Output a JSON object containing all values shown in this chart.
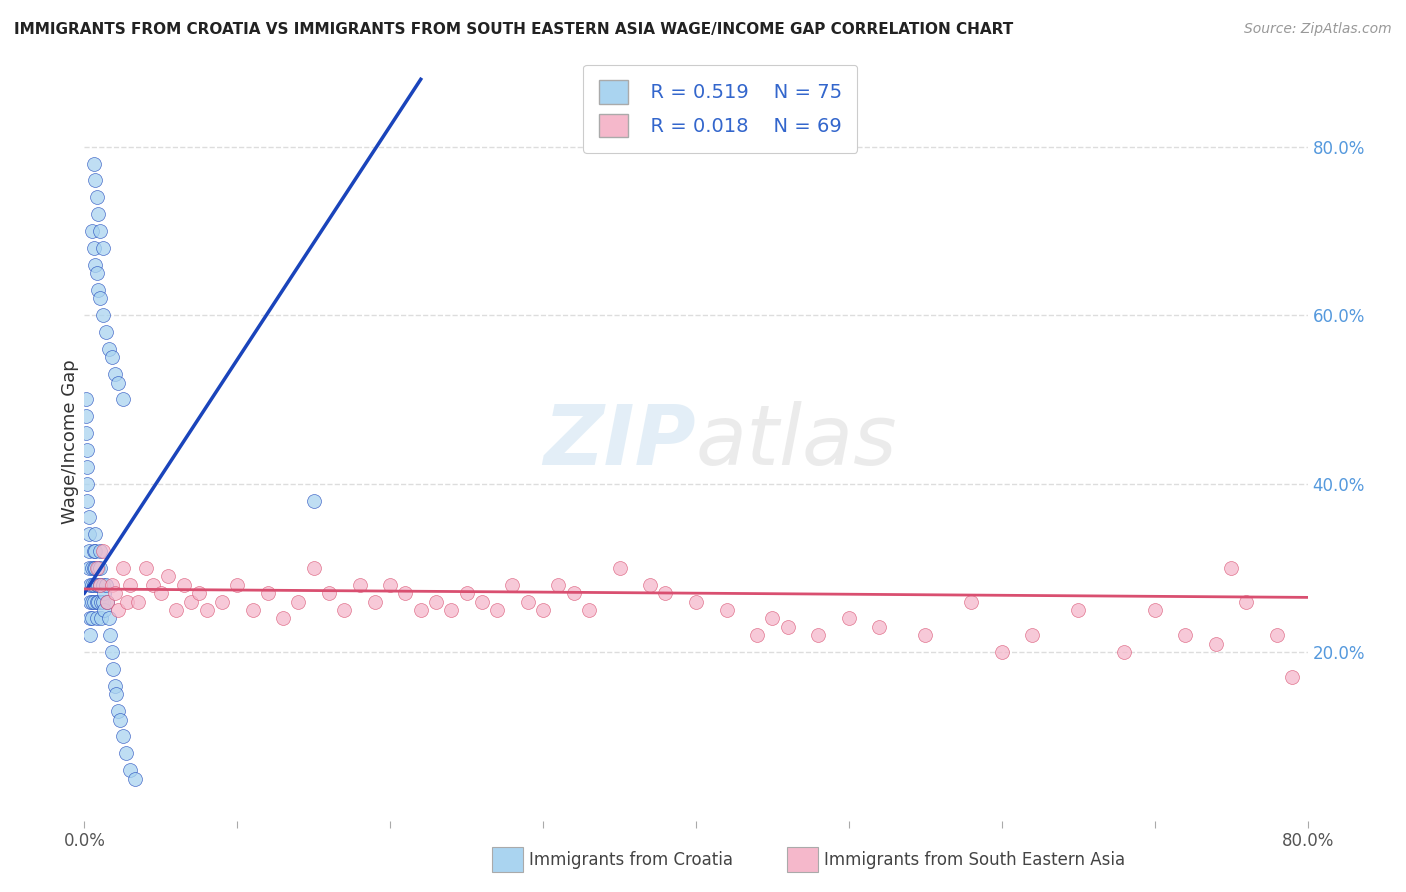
{
  "title": "IMMIGRANTS FROM CROATIA VS IMMIGRANTS FROM SOUTH EASTERN ASIA WAGE/INCOME GAP CORRELATION CHART",
  "source": "Source: ZipAtlas.com",
  "ylabel": "Wage/Income Gap",
  "legend_blue_R": "R = 0.519",
  "legend_blue_N": "N = 75",
  "legend_pink_R": "R = 0.018",
  "legend_pink_N": "N = 69",
  "legend_blue_label": "Immigrants from Croatia",
  "legend_pink_label": "Immigrants from South Eastern Asia",
  "blue_color": "#aad4f0",
  "pink_color": "#f5b8cb",
  "blue_line_color": "#1a44bb",
  "pink_line_color": "#d94f70",
  "background_color": "#ffffff",
  "grid_color": "#cccccc",
  "xlim": [
    0.0,
    0.8
  ],
  "ylim": [
    0.0,
    0.9
  ],
  "blue_scatter_x": [
    0.001,
    0.001,
    0.001,
    0.002,
    0.002,
    0.002,
    0.002,
    0.003,
    0.003,
    0.003,
    0.003,
    0.004,
    0.004,
    0.004,
    0.004,
    0.005,
    0.005,
    0.005,
    0.005,
    0.006,
    0.006,
    0.006,
    0.006,
    0.007,
    0.007,
    0.007,
    0.008,
    0.008,
    0.008,
    0.009,
    0.009,
    0.009,
    0.01,
    0.01,
    0.01,
    0.011,
    0.011,
    0.012,
    0.012,
    0.013,
    0.013,
    0.014,
    0.015,
    0.016,
    0.017,
    0.018,
    0.019,
    0.02,
    0.021,
    0.022,
    0.023,
    0.025,
    0.027,
    0.03,
    0.033,
    0.005,
    0.006,
    0.007,
    0.008,
    0.009,
    0.01,
    0.012,
    0.014,
    0.016,
    0.018,
    0.02,
    0.022,
    0.025,
    0.006,
    0.007,
    0.008,
    0.009,
    0.01,
    0.012,
    0.15
  ],
  "blue_scatter_y": [
    0.5,
    0.48,
    0.46,
    0.44,
    0.42,
    0.4,
    0.38,
    0.36,
    0.34,
    0.32,
    0.3,
    0.28,
    0.26,
    0.24,
    0.22,
    0.3,
    0.28,
    0.26,
    0.24,
    0.32,
    0.3,
    0.28,
    0.26,
    0.34,
    0.32,
    0.3,
    0.28,
    0.26,
    0.24,
    0.3,
    0.28,
    0.26,
    0.32,
    0.3,
    0.28,
    0.26,
    0.24,
    0.28,
    0.26,
    0.27,
    0.25,
    0.28,
    0.26,
    0.24,
    0.22,
    0.2,
    0.18,
    0.16,
    0.15,
    0.13,
    0.12,
    0.1,
    0.08,
    0.06,
    0.05,
    0.7,
    0.68,
    0.66,
    0.65,
    0.63,
    0.62,
    0.6,
    0.58,
    0.56,
    0.55,
    0.53,
    0.52,
    0.5,
    0.78,
    0.76,
    0.74,
    0.72,
    0.7,
    0.68,
    0.38
  ],
  "pink_scatter_x": [
    0.008,
    0.01,
    0.012,
    0.015,
    0.018,
    0.02,
    0.022,
    0.025,
    0.028,
    0.03,
    0.035,
    0.04,
    0.045,
    0.05,
    0.055,
    0.06,
    0.065,
    0.07,
    0.075,
    0.08,
    0.09,
    0.1,
    0.11,
    0.12,
    0.13,
    0.14,
    0.15,
    0.16,
    0.17,
    0.18,
    0.19,
    0.2,
    0.21,
    0.22,
    0.23,
    0.24,
    0.25,
    0.26,
    0.27,
    0.28,
    0.29,
    0.3,
    0.31,
    0.32,
    0.33,
    0.35,
    0.37,
    0.38,
    0.4,
    0.42,
    0.44,
    0.45,
    0.46,
    0.48,
    0.5,
    0.52,
    0.55,
    0.58,
    0.6,
    0.62,
    0.65,
    0.68,
    0.7,
    0.72,
    0.74,
    0.75,
    0.76,
    0.78,
    0.79
  ],
  "pink_scatter_y": [
    0.3,
    0.28,
    0.32,
    0.26,
    0.28,
    0.27,
    0.25,
    0.3,
    0.26,
    0.28,
    0.26,
    0.3,
    0.28,
    0.27,
    0.29,
    0.25,
    0.28,
    0.26,
    0.27,
    0.25,
    0.26,
    0.28,
    0.25,
    0.27,
    0.24,
    0.26,
    0.3,
    0.27,
    0.25,
    0.28,
    0.26,
    0.28,
    0.27,
    0.25,
    0.26,
    0.25,
    0.27,
    0.26,
    0.25,
    0.28,
    0.26,
    0.25,
    0.28,
    0.27,
    0.25,
    0.3,
    0.28,
    0.27,
    0.26,
    0.25,
    0.22,
    0.24,
    0.23,
    0.22,
    0.24,
    0.23,
    0.22,
    0.26,
    0.2,
    0.22,
    0.25,
    0.2,
    0.25,
    0.22,
    0.21,
    0.3,
    0.26,
    0.22,
    0.17
  ],
  "blue_trend_x": [
    0.0,
    0.22
  ],
  "blue_trend_y": [
    0.27,
    0.88
  ],
  "pink_trend_x": [
    0.0,
    0.8
  ],
  "pink_trend_y": [
    0.275,
    0.265
  ]
}
